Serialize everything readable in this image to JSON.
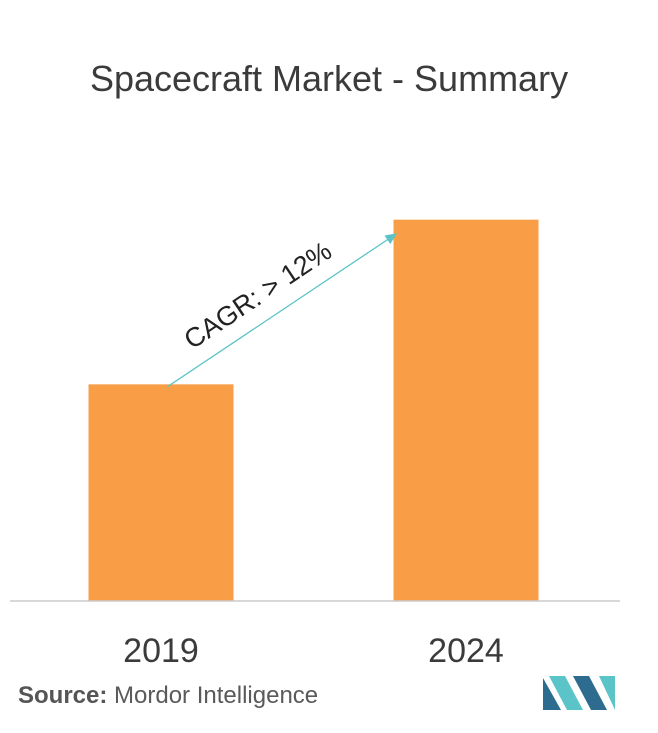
{
  "colors": {
    "bar": "#F99D46",
    "arrow": "#5BC4C8",
    "axis": "#cccccc",
    "text": "#3b3b3b"
  },
  "chart_data": {
    "type": "bar",
    "title": "Spacecraft Market - Summary",
    "categories": [
      "2019",
      "2024"
    ],
    "values": [
      1.0,
      1.76
    ],
    "ylim": [
      0,
      1.8
    ],
    "grid": false,
    "annotation": "CAGR: > 12%"
  },
  "source": {
    "label": "Source:",
    "text": "Mordor Intelligence"
  },
  "logo": {
    "icon": "mordor-intelligence-logo-icon"
  }
}
